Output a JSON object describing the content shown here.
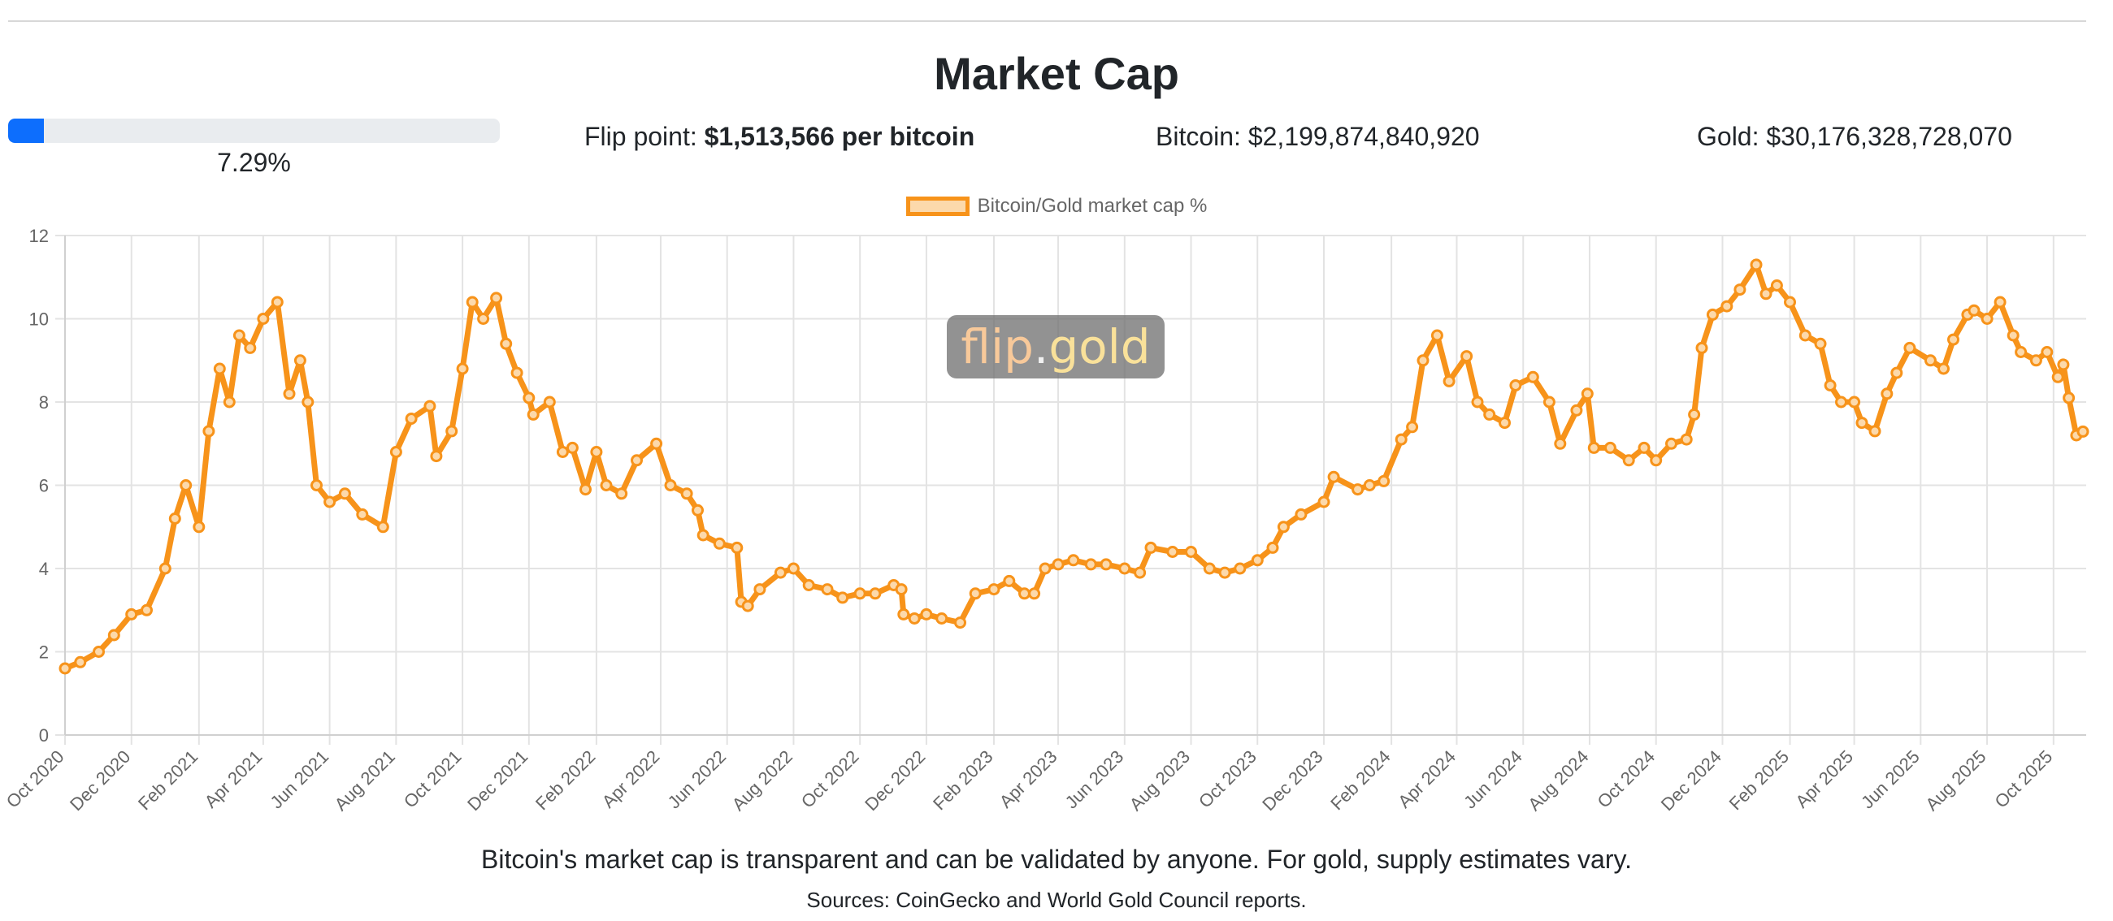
{
  "page": {
    "title": "Market Cap",
    "progress": {
      "value_percent": 7.29,
      "label": "7.29%"
    },
    "flip_point": {
      "label": "Flip point: ",
      "value": "$1,513,566 per bitcoin"
    },
    "bitcoin": {
      "label": "Bitcoin: ",
      "value": "$2,199,874,840,920"
    },
    "gold": {
      "label": "Gold: ",
      "value": "$30,176,328,728,070"
    },
    "watermark": {
      "part1": "flip",
      "part2": ".",
      "part3": "gold"
    },
    "footer_note": "Bitcoin's market cap is transparent and can be validated by anyone. For gold, supply estimates vary.",
    "sources": "Sources: CoinGecko and World Gold Council reports."
  },
  "colors": {
    "line": "#f7931a",
    "fill": "#fcd9ab",
    "progress": "#0d6efd",
    "track": "#e9ecef"
  },
  "chart_data": {
    "type": "line",
    "title": "",
    "xlabel": "",
    "ylabel": "",
    "ylim": [
      0,
      12
    ],
    "yticks": [
      0,
      2,
      4,
      6,
      8,
      10,
      12
    ],
    "xlim": [
      "2020-10-01",
      "2025-10-31"
    ],
    "xticks": [
      "Oct 2020",
      "Dec 2020",
      "Feb 2021",
      "Apr 2021",
      "Jun 2021",
      "Aug 2021",
      "Oct 2021",
      "Dec 2021",
      "Feb 2022",
      "Apr 2022",
      "Jun 2022",
      "Aug 2022",
      "Oct 2022",
      "Dec 2022",
      "Feb 2023",
      "Apr 2023",
      "Jun 2023",
      "Aug 2023",
      "Oct 2023",
      "Dec 2023",
      "Feb 2024",
      "Apr 2024",
      "Jun 2024",
      "Aug 2024",
      "Oct 2024",
      "Dec 2024",
      "Feb 2025",
      "Apr 2025",
      "Jun 2025",
      "Aug 2025",
      "Oct 2025"
    ],
    "grid": true,
    "legend": "top-center",
    "series": [
      {
        "name": "Bitcoin/Gold market cap %",
        "x": [
          "2020-10-01",
          "2020-10-15",
          "2020-11-01",
          "2020-11-15",
          "2020-12-01",
          "2020-12-15",
          "2021-01-01",
          "2021-01-10",
          "2021-01-20",
          "2021-02-01",
          "2021-02-10",
          "2021-02-20",
          "2021-03-01",
          "2021-03-10",
          "2021-03-20",
          "2021-04-01",
          "2021-04-14",
          "2021-04-25",
          "2021-05-05",
          "2021-05-12",
          "2021-05-20",
          "2021-06-01",
          "2021-06-15",
          "2021-07-01",
          "2021-07-20",
          "2021-08-01",
          "2021-08-15",
          "2021-09-01",
          "2021-09-07",
          "2021-09-21",
          "2021-10-01",
          "2021-10-10",
          "2021-10-20",
          "2021-11-01",
          "2021-11-10",
          "2021-11-20",
          "2021-12-01",
          "2021-12-05",
          "2021-12-20",
          "2022-01-01",
          "2022-01-10",
          "2022-01-22",
          "2022-02-01",
          "2022-02-10",
          "2022-02-24",
          "2022-03-10",
          "2022-03-28",
          "2022-04-10",
          "2022-04-25",
          "2022-05-05",
          "2022-05-10",
          "2022-05-25",
          "2022-06-10",
          "2022-06-14",
          "2022-06-20",
          "2022-07-01",
          "2022-07-20",
          "2022-08-01",
          "2022-08-15",
          "2022-09-01",
          "2022-09-15",
          "2022-10-01",
          "2022-10-15",
          "2022-11-01",
          "2022-11-08",
          "2022-11-10",
          "2022-11-20",
          "2022-12-01",
          "2022-12-15",
          "2023-01-01",
          "2023-01-15",
          "2023-02-01",
          "2023-02-15",
          "2023-03-01",
          "2023-03-10",
          "2023-03-20",
          "2023-04-01",
          "2023-04-15",
          "2023-05-01",
          "2023-05-15",
          "2023-06-01",
          "2023-06-15",
          "2023-06-25",
          "2023-07-15",
          "2023-08-01",
          "2023-08-18",
          "2023-09-01",
          "2023-09-15",
          "2023-10-01",
          "2023-10-15",
          "2023-10-25",
          "2023-11-10",
          "2023-12-01",
          "2023-12-10",
          "2024-01-01",
          "2024-01-12",
          "2024-01-25",
          "2024-02-10",
          "2024-02-20",
          "2024-03-01",
          "2024-03-14",
          "2024-03-25",
          "2024-04-10",
          "2024-04-20",
          "2024-05-01",
          "2024-05-15",
          "2024-05-25",
          "2024-06-10",
          "2024-06-25",
          "2024-07-05",
          "2024-07-20",
          "2024-07-30",
          "2024-08-05",
          "2024-08-20",
          "2024-09-06",
          "2024-09-20",
          "2024-10-01",
          "2024-10-15",
          "2024-10-29",
          "2024-11-05",
          "2024-11-12",
          "2024-11-22",
          "2024-12-05",
          "2024-12-17",
          "2025-01-01",
          "2025-01-10",
          "2025-01-20",
          "2025-02-01",
          "2025-02-15",
          "2025-03-01",
          "2025-03-10",
          "2025-03-20",
          "2025-04-01",
          "2025-04-08",
          "2025-04-20",
          "2025-05-01",
          "2025-05-10",
          "2025-05-22",
          "2025-06-10",
          "2025-06-22",
          "2025-07-01",
          "2025-07-14",
          "2025-07-20",
          "2025-08-01",
          "2025-08-13",
          "2025-08-25",
          "2025-09-01",
          "2025-09-15",
          "2025-09-25",
          "2025-10-05",
          "2025-10-10",
          "2025-10-15",
          "2025-10-22",
          "2025-10-28"
        ],
        "y": [
          1.6,
          1.75,
          2.0,
          2.4,
          2.9,
          3.0,
          4.0,
          5.2,
          6.0,
          5.0,
          7.3,
          8.8,
          8.0,
          9.6,
          9.3,
          10.0,
          10.4,
          8.2,
          9.0,
          8.0,
          6.0,
          5.6,
          5.8,
          5.3,
          5.0,
          6.8,
          7.6,
          7.9,
          6.7,
          7.3,
          8.8,
          10.4,
          10.0,
          10.5,
          9.4,
          8.7,
          8.1,
          7.7,
          8.0,
          6.8,
          6.9,
          5.9,
          6.8,
          6.0,
          5.8,
          6.6,
          7.0,
          6.0,
          5.8,
          5.4,
          4.8,
          4.6,
          4.5,
          3.2,
          3.1,
          3.5,
          3.9,
          4.0,
          3.6,
          3.5,
          3.3,
          3.4,
          3.4,
          3.6,
          3.5,
          2.9,
          2.8,
          2.9,
          2.8,
          2.7,
          3.4,
          3.5,
          3.7,
          3.4,
          3.4,
          4.0,
          4.1,
          4.2,
          4.1,
          4.1,
          4.0,
          3.9,
          4.5,
          4.4,
          4.4,
          4.0,
          3.9,
          4.0,
          4.2,
          4.5,
          5.0,
          5.3,
          5.6,
          6.2,
          5.9,
          6.0,
          6.1,
          7.1,
          7.4,
          9.0,
          9.6,
          8.5,
          9.1,
          8.0,
          7.7,
          7.5,
          8.4,
          8.6,
          8.0,
          7.0,
          7.8,
          8.2,
          6.9,
          6.9,
          6.6,
          6.9,
          6.6,
          7.0,
          7.1,
          7.7,
          9.3,
          10.1,
          10.3,
          10.7,
          11.3,
          10.6,
          10.8,
          10.4,
          9.6,
          9.4,
          8.4,
          8.0,
          8.0,
          7.5,
          7.3,
          8.2,
          8.7,
          9.3,
          9.0,
          8.8,
          9.5,
          10.1,
          10.2,
          10.0,
          10.4,
          9.6,
          9.2,
          9.0,
          9.2,
          8.6,
          8.9,
          8.1,
          7.2,
          7.29
        ]
      }
    ]
  }
}
